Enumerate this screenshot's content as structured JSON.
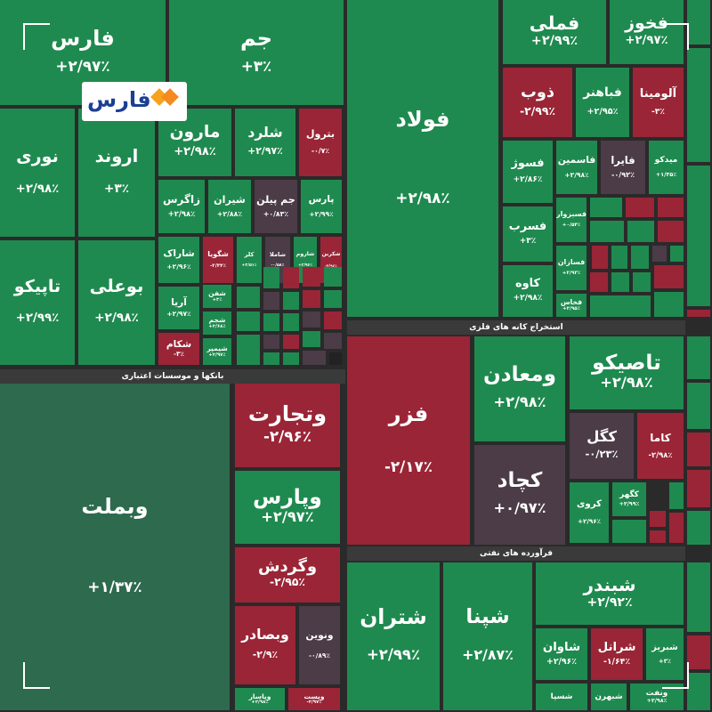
{
  "logo": "فارس",
  "sectors": [
    "بانکها و موسسات اعتباری",
    "استخراج کانه های فلزی",
    "فرآورده های نفتی"
  ],
  "tiles": [
    {
      "name": "فارس",
      "change": "+۲/۹۷٪"
    },
    {
      "name": "جم",
      "change": "+۳٪"
    },
    {
      "name": "نوری",
      "change": "+۲/۹۸٪"
    },
    {
      "name": "اروند",
      "change": "+۳٪"
    },
    {
      "name": "تاپیکو",
      "change": "+۲/۹۹٪"
    },
    {
      "name": "بوعلی",
      "change": "+۲/۹۸٪"
    },
    {
      "name": "مارون",
      "change": "+۲/۹۸٪"
    },
    {
      "name": "شلرد",
      "change": "+۲/۹۷٪"
    },
    {
      "name": "بترول",
      "change": "-۰/۷٪"
    },
    {
      "name": "زاگرس",
      "change": "+۲/۹۸٪"
    },
    {
      "name": "شیران",
      "change": "+۲/۸۸٪"
    },
    {
      "name": "جم پیلن",
      "change": "+۰/۸۳٪"
    },
    {
      "name": "پارس",
      "change": "+۲/۹۹٪"
    },
    {
      "name": "شاراک",
      "change": "+۲/۹۶٪"
    },
    {
      "name": "شگویا",
      "change": "-۲/۳۴٪"
    },
    {
      "name": "کلر",
      "change": "+۲/۵۱٪"
    },
    {
      "name": "شاملا",
      "change": "-۰/۵۸٪"
    },
    {
      "name": "شاروم",
      "change": "+۲/۹۶٪"
    },
    {
      "name": "شکربن",
      "change": "-۲/۹۶٪"
    },
    {
      "name": "آریا",
      "change": "+۲/۹۷٪"
    },
    {
      "name": "شفن",
      "change": "+۳٪"
    },
    {
      "name": "شجم",
      "change": "+۲/۶۸٪"
    },
    {
      "name": "شیمپر",
      "change": "+۲/۹۷٪"
    },
    {
      "name": "شکام",
      "change": "-۳٪"
    },
    {
      "name": "وبملت",
      "change": "+۱/۳۷٪"
    },
    {
      "name": "وتجارت",
      "change": "-۲/۹۶٪"
    },
    {
      "name": "وپارس",
      "change": "+۲/۹۷٪"
    },
    {
      "name": "وگردش",
      "change": "-۲/۹۵٪"
    },
    {
      "name": "وبصادر",
      "change": "-۲/۹٪"
    },
    {
      "name": "ونوین",
      "change": "-۰/۸۹٪"
    },
    {
      "name": "وپاسار",
      "change": "+۲/۹۸٪"
    },
    {
      "name": "وپست",
      "change": "-۲/۹۷٪"
    },
    {
      "name": "فولاد",
      "change": "+۲/۹۸٪"
    },
    {
      "name": "فملی",
      "change": "+۲/۹۹٪"
    },
    {
      "name": "فخوز",
      "change": "+۲/۹۷٪"
    },
    {
      "name": "ذوب",
      "change": "-۲/۹۹٪"
    },
    {
      "name": "فباهنر",
      "change": "+۲/۹۵٪"
    },
    {
      "name": "آلومینا",
      "change": "-۳٪"
    },
    {
      "name": "فسوژ",
      "change": "+۲/۸۶٪"
    },
    {
      "name": "فاسمین",
      "change": "+۲/۹۸٪"
    },
    {
      "name": "فایرا",
      "change": "-۰/۹۲٪"
    },
    {
      "name": "میدکو",
      "change": "+۱/۳۵٪"
    },
    {
      "name": "فسرب",
      "change": "+۳٪"
    },
    {
      "name": "کاوه",
      "change": "+۲/۹۸٪"
    },
    {
      "name": "فسبزوار",
      "change": "+۰/۵۴٪"
    },
    {
      "name": "فسازان",
      "change": "+۲/۹۳٪"
    },
    {
      "name": "فخاس",
      "change": "+۲/۹۵٪"
    },
    {
      "name": "فزر",
      "change": "-۲/۱۷٪"
    },
    {
      "name": "ومعادن",
      "change": "+۲/۹۸٪"
    },
    {
      "name": "تاصیکو",
      "change": "+۲/۹۸٪"
    },
    {
      "name": "کچاد",
      "change": "+۰/۹۷٪"
    },
    {
      "name": "کگل",
      "change": "-۰/۲۳٪"
    },
    {
      "name": "کاما",
      "change": "-۲/۹۸٪"
    },
    {
      "name": "کروی",
      "change": "+۲/۹۶٪"
    },
    {
      "name": "کگهر",
      "change": "+۲/۹۹٪"
    },
    {
      "name": "شتران",
      "change": "+۲/۹۹٪"
    },
    {
      "name": "شپنا",
      "change": "+۲/۸۷٪"
    },
    {
      "name": "شبندر",
      "change": "+۲/۹۲٪"
    },
    {
      "name": "شاوان",
      "change": "+۲/۹۶٪"
    },
    {
      "name": "شرانل",
      "change": "-۱/۶۴٪"
    },
    {
      "name": "شبریز",
      "change": "+۳٪"
    },
    {
      "name": "شسپا"
    },
    {
      "name": "شبهرن"
    },
    {
      "name": "ونفت",
      "change": "+۲/۹۸٪"
    }
  ]
}
